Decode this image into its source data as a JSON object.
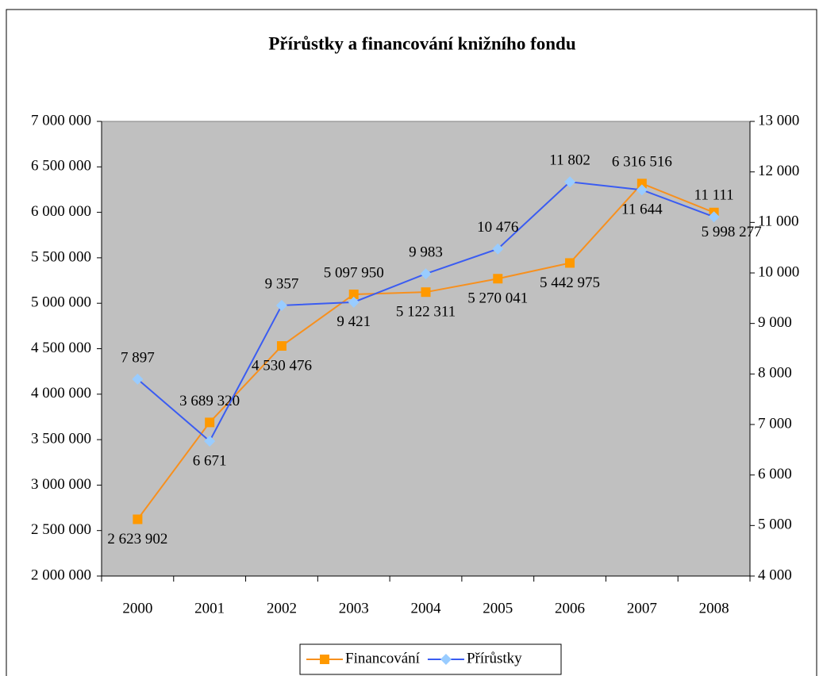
{
  "chart_data": {
    "type": "line",
    "title": "Přírůstky a financování knižního fondu",
    "categories": [
      "2000",
      "2001",
      "2002",
      "2003",
      "2004",
      "2005",
      "2006",
      "2007",
      "2008"
    ],
    "series": [
      {
        "name": "Financování",
        "color": "#ff9900",
        "line_color": "#f7901e",
        "marker": "square",
        "values": [
          2623902,
          3689320,
          4530476,
          5097950,
          5122311,
          5270041,
          5442975,
          6316516,
          5998277
        ],
        "value_labels": [
          "2 623 902",
          "3 689 320",
          "4 530 476",
          "5 097 950",
          "5 122 311",
          "5 270 041",
          "5 442 975",
          "6 316 516",
          "5 998 277"
        ]
      },
      {
        "name": "Přírůstky",
        "color": "#99ccff",
        "line_color": "#3a5cf2",
        "marker": "diamond",
        "axis": "y2",
        "values": [
          7897,
          6671,
          9357,
          9421,
          9983,
          10476,
          11802,
          11644,
          11111
        ],
        "value_labels": [
          "7 897",
          "6 671",
          "9 357",
          "9 421",
          "9 983",
          "10 476",
          "11 802",
          "11 644",
          "11 111"
        ]
      }
    ],
    "ylim": [
      2000000,
      7000000
    ],
    "yticks": [
      {
        "value": 2000000,
        "label": "2 000 000"
      },
      {
        "value": 2500000,
        "label": "2 500 000"
      },
      {
        "value": 3000000,
        "label": "3 000 000"
      },
      {
        "value": 3500000,
        "label": "3 500 000"
      },
      {
        "value": 4000000,
        "label": "4 000 000"
      },
      {
        "value": 4500000,
        "label": "4 500 000"
      },
      {
        "value": 5000000,
        "label": "5 000 000"
      },
      {
        "value": 5500000,
        "label": "5 500 000"
      },
      {
        "value": 6000000,
        "label": "6 000 000"
      },
      {
        "value": 6500000,
        "label": "6 500 000"
      },
      {
        "value": 7000000,
        "label": "7 000 000"
      }
    ],
    "y2lim": [
      4000,
      13000
    ],
    "y2ticks": [
      {
        "value": 4000,
        "label": "4 000"
      },
      {
        "value": 5000,
        "label": "5 000"
      },
      {
        "value": 6000,
        "label": "6 000"
      },
      {
        "value": 7000,
        "label": "7 000"
      },
      {
        "value": 8000,
        "label": "8 000"
      },
      {
        "value": 9000,
        "label": "9 000"
      },
      {
        "value": 10000,
        "label": "10 000"
      },
      {
        "value": 11000,
        "label": "11 000"
      },
      {
        "value": 12000,
        "label": "12 000"
      },
      {
        "value": 13000,
        "label": "13 000"
      }
    ],
    "plot_background": "#c0c0c0",
    "legend": "bottom"
  }
}
